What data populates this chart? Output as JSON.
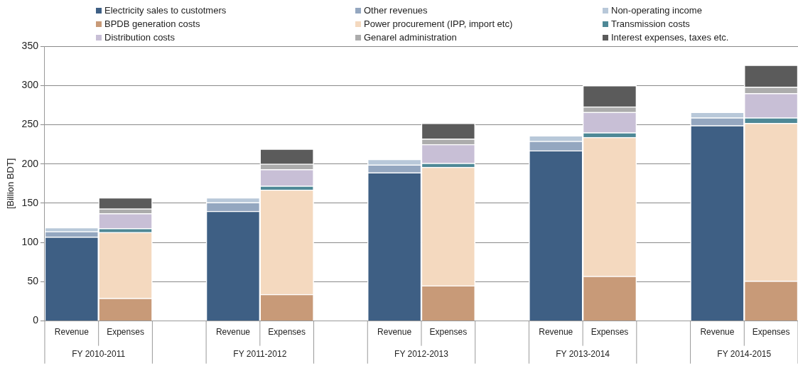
{
  "chart_data": {
    "type": "bar",
    "stacked": true,
    "ylabel": "[Billion BDT]",
    "categories": [
      "Revenue",
      "Expenses",
      null,
      "Revenue",
      "Expenses",
      null,
      "Revenue",
      "Expenses",
      null,
      "Revenue",
      "Expenses",
      null,
      "Revenue",
      "Expenses"
    ],
    "series": [
      {
        "name": "Electricity sales to custotmers",
        "color": "#3e5f84",
        "values": [
          107,
          null,
          null,
          140,
          null,
          null,
          189,
          null,
          null,
          217,
          null,
          null,
          249,
          null
        ]
      },
      {
        "name": "Other revenues",
        "color": "#94a7c0",
        "values": [
          7,
          null,
          null,
          11,
          null,
          null,
          10,
          null,
          null,
          12,
          null,
          null,
          10,
          null
        ]
      },
      {
        "name": "Non-operating income",
        "color": "#b8c8d9",
        "values": [
          5,
          null,
          null,
          6,
          null,
          null,
          7,
          null,
          null,
          7,
          null,
          null,
          7,
          null
        ]
      },
      {
        "name": "BPDB generation costs",
        "color": "#c89a78",
        "values": [
          null,
          29,
          null,
          null,
          34,
          null,
          null,
          45,
          null,
          null,
          57,
          null,
          null,
          51
        ]
      },
      {
        "name": "Power procurement (IPP, import etc)",
        "color": "#f4d9bf",
        "values": [
          null,
          84,
          null,
          null,
          133,
          null,
          null,
          151,
          null,
          null,
          177,
          null,
          null,
          201
        ]
      },
      {
        "name": "Transmission costs",
        "color": "#4e8896",
        "values": [
          null,
          5,
          null,
          null,
          5,
          null,
          null,
          5,
          null,
          null,
          6,
          null,
          null,
          7
        ]
      },
      {
        "name": "Distribution costs",
        "color": "#c8bfd6",
        "values": [
          null,
          19,
          null,
          null,
          21,
          null,
          null,
          24,
          null,
          null,
          26,
          null,
          null,
          31
        ]
      },
      {
        "name": "Genarel administration",
        "color": "#acacac",
        "values": [
          null,
          6,
          null,
          null,
          7,
          null,
          null,
          7,
          null,
          null,
          7,
          null,
          null,
          8
        ]
      },
      {
        "name": "Interest expenses, taxes etc.",
        "color": "#5b5b5b",
        "values": [
          null,
          14,
          null,
          null,
          19,
          null,
          null,
          20,
          null,
          null,
          27,
          null,
          null,
          28
        ]
      }
    ],
    "ylim": [
      0,
      350
    ],
    "yticks": [
      0,
      50,
      100,
      150,
      200,
      250,
      300,
      350
    ],
    "grid": "y",
    "legend": "top",
    "annotations": [
      "FY 2010-2011",
      "FY 2011-2012",
      "FY 2012-2013",
      "FY 2013-2014",
      "FY 2014-2015"
    ]
  }
}
